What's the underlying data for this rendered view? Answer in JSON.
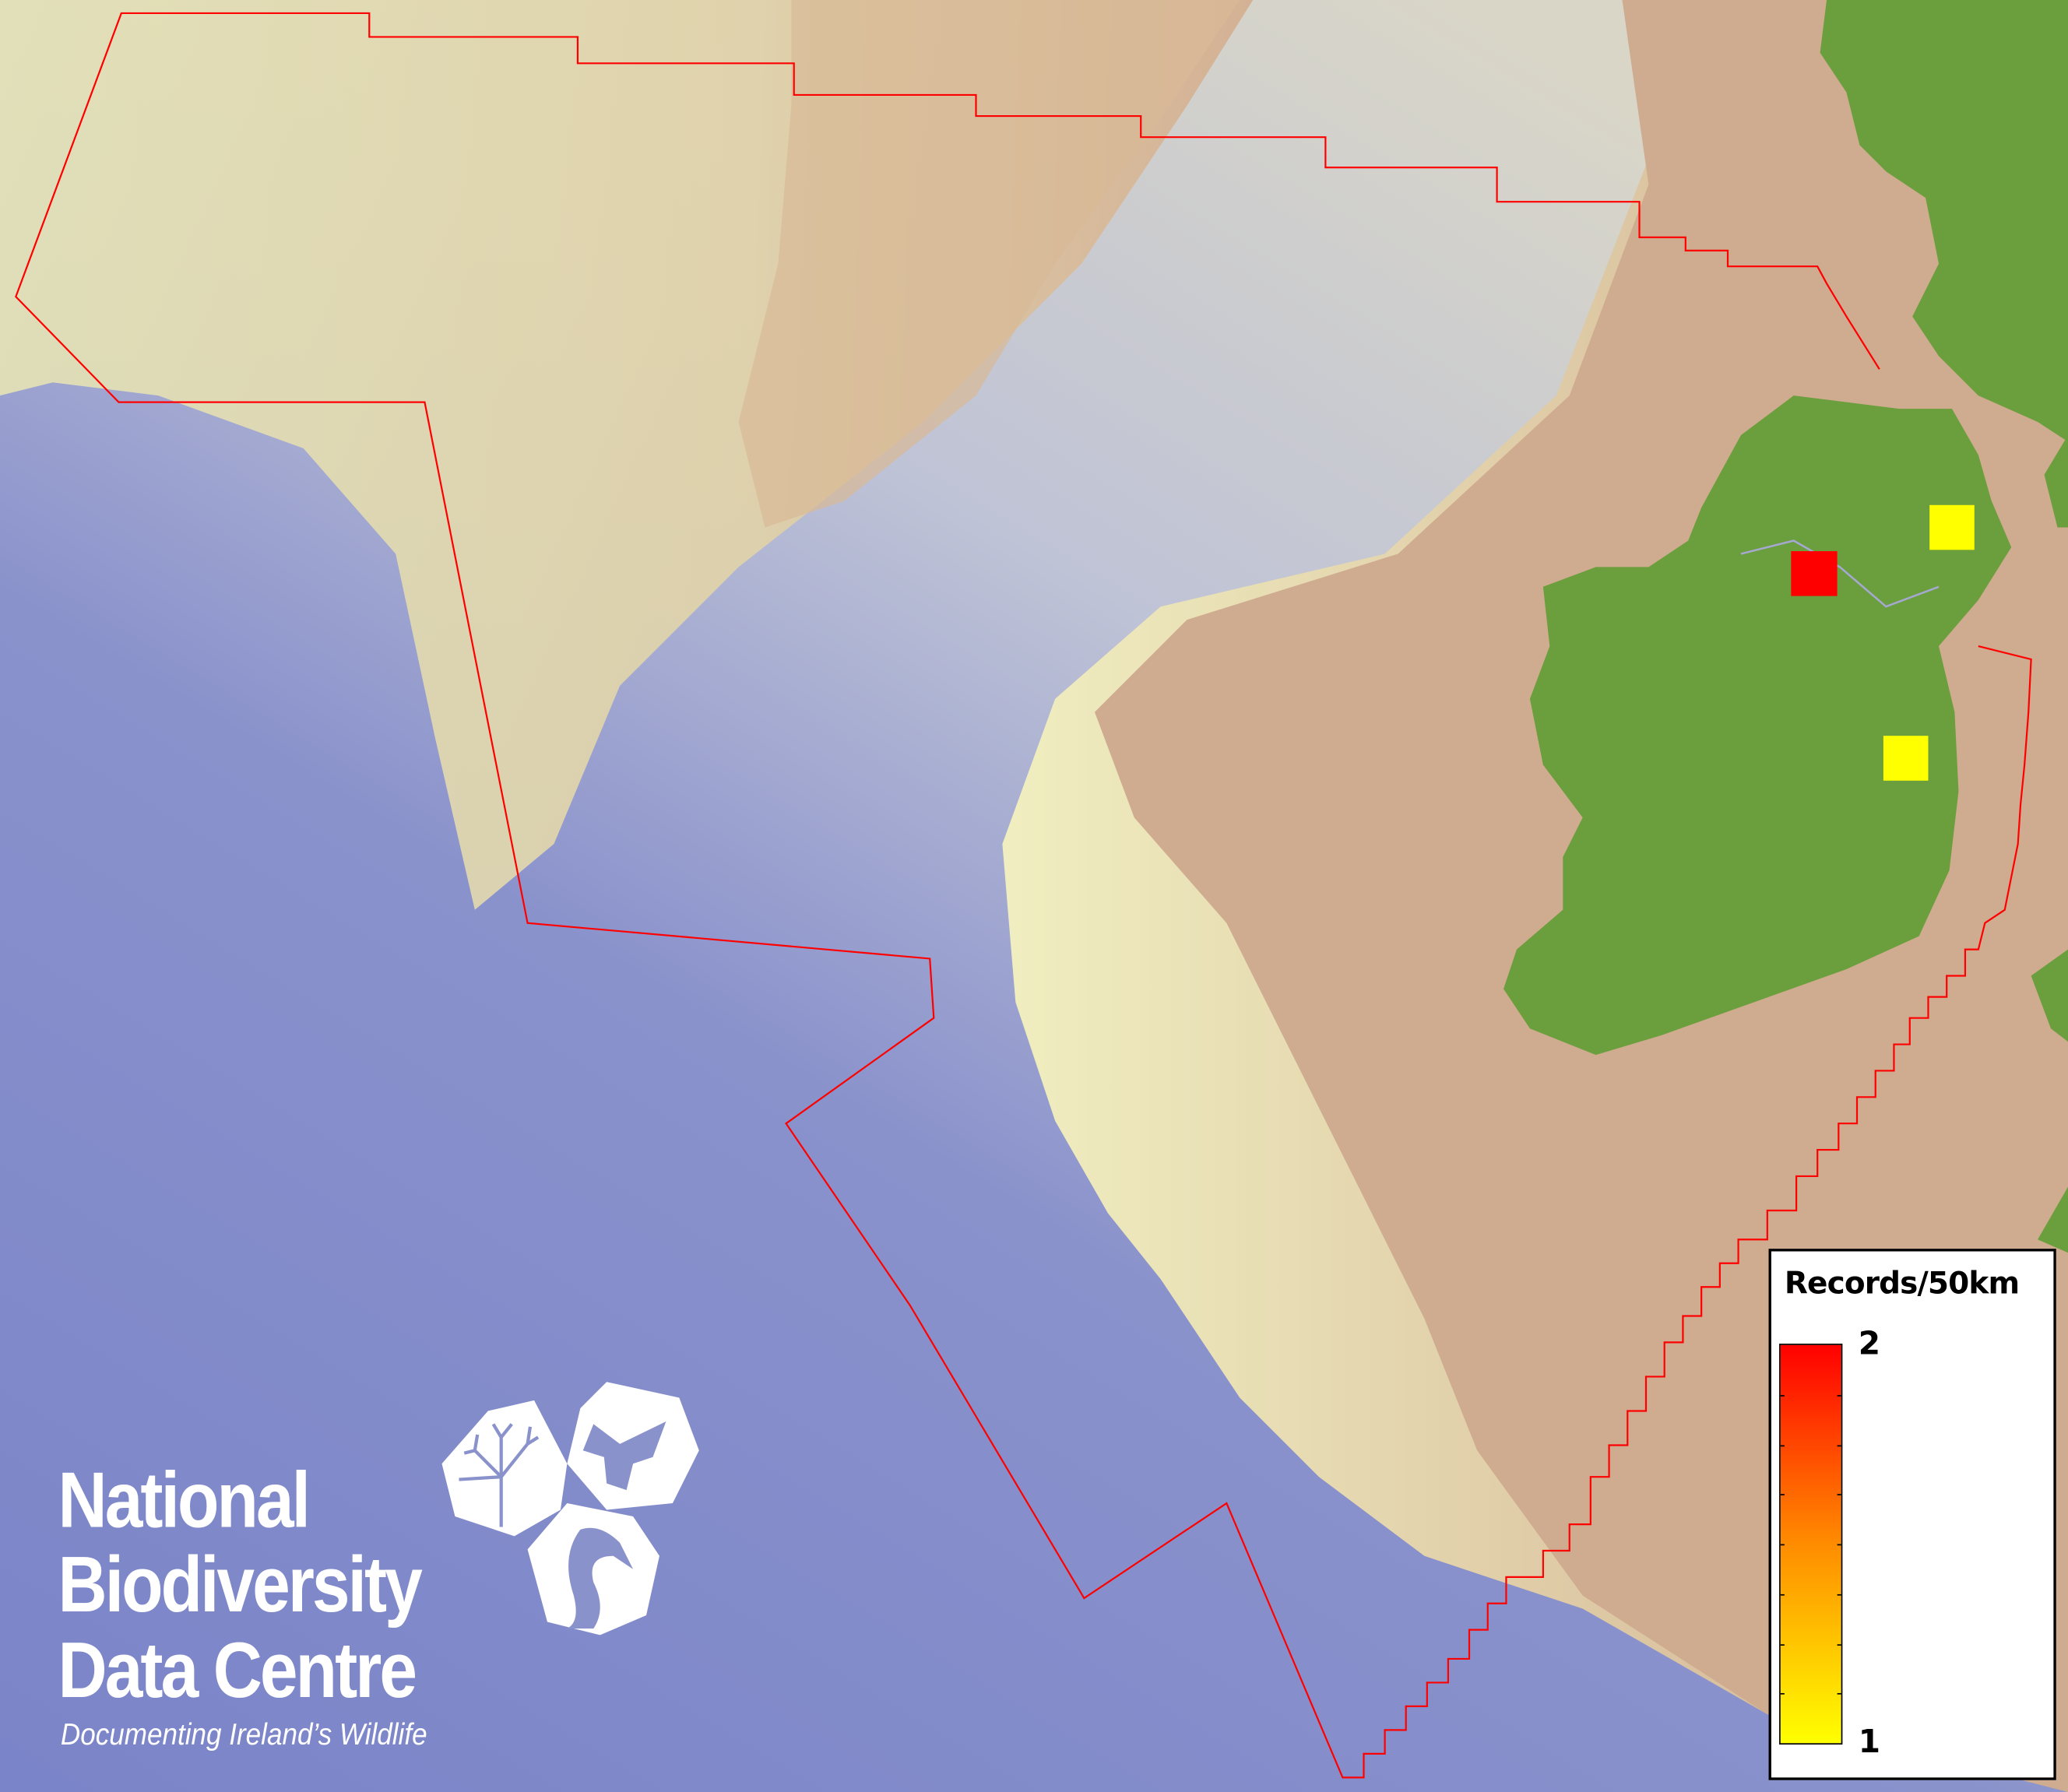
{
  "map": {
    "colors": {
      "land": "#6b9e3c",
      "shelf_shallow": "#e8e2b0",
      "deep_ocean": "#7c85c6",
      "shelf_brown": "#caa98e",
      "boundary": "#ff0000"
    },
    "records": [
      {
        "square": "red-square",
        "value": 2,
        "color": "#ff0000"
      },
      {
        "square": "yellow-square-north",
        "value": 1,
        "color": "#ffff00"
      },
      {
        "square": "yellow-square-east",
        "value": 1,
        "color": "#ffff00"
      }
    ]
  },
  "legend": {
    "title": "Records/50km",
    "max_label": "2",
    "min_label": "1",
    "gradient": [
      "#ffff00",
      "#ff8c00",
      "#ff0000"
    ]
  },
  "logo": {
    "line1": "National",
    "line2": "Biodiversity",
    "line3": "Data Centre",
    "tagline": "Documenting Ireland’s Wildlife",
    "icons": [
      "tree-icon",
      "butterfly-icon",
      "seahorse-icon"
    ]
  }
}
